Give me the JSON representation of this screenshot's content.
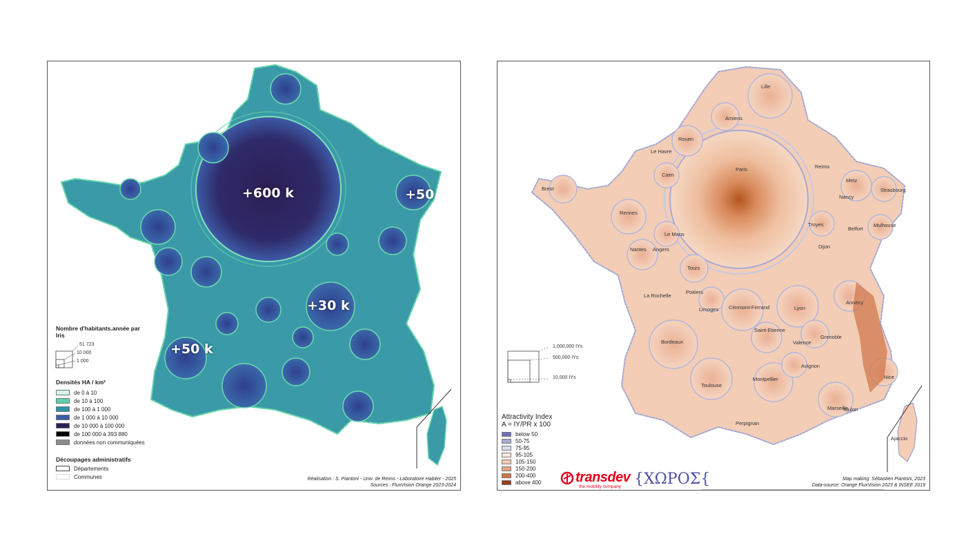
{
  "left_map": {
    "overlay_labels": [
      "+600 k",
      "+50",
      "+30 k",
      "+50 k"
    ],
    "legend_size": {
      "title": "Nombre d'habitants.année par Iris",
      "values": [
        "51 723",
        "10 000",
        "1 000"
      ]
    },
    "legend_density": {
      "title": "Densités HA / km²",
      "items": [
        {
          "label": "de 0 à 10",
          "color": "#d7f4e3"
        },
        {
          "label": "de 10 à 100",
          "color": "#5fd0a7"
        },
        {
          "label": "de 100 à 1 000",
          "color": "#2e93a5"
        },
        {
          "label": "de 1 000 à 10 000",
          "color": "#3a5ba6"
        },
        {
          "label": "de 10 000 à 100 000",
          "color": "#2c1f55"
        },
        {
          "label": "de 100 000 à 393 880",
          "color": "#000000"
        },
        {
          "label": "données non communiquées",
          "color": "#8c8c8c"
        }
      ]
    },
    "legend_admin": {
      "title": "Découpages administratifs",
      "items": [
        "Départements",
        "Communes"
      ]
    },
    "credit": {
      "line1": "Réalisation : S. Piantoni - Univ. de Reims - Laboratoire Habiter - 2025",
      "line2": "Sources : FluxVision Orange 2023-2024"
    }
  },
  "right_map": {
    "cities": [
      "Lille",
      "Amiens",
      "Rouen",
      "Le Havre",
      "Caen",
      "Brest",
      "Rennes",
      "Le Mans",
      "Angers",
      "Nantes",
      "Tours",
      "Paris",
      "Reims",
      "Metz",
      "Strasbourg",
      "Nancy",
      "Troyes",
      "Belfort",
      "Mulhouse",
      "Dijon",
      "Poitiers",
      "La Rochelle",
      "Limoges",
      "Clermont-Ferrand",
      "Lyon",
      "Annecy",
      "Saint-Etienne",
      "Grenoble",
      "Valence",
      "Bordeaux",
      "Avignon",
      "Nice",
      "Montpellier",
      "Toulouse",
      "Marseille",
      "Toulon",
      "Perpignan",
      "Ajaccio"
    ],
    "size_legend": [
      "1,000,000 IYs",
      "500,000 IYs",
      "10,000 IYs"
    ],
    "legend": {
      "title": "Attractivity Index",
      "subtitle": "A = IY/PR x 100",
      "items": [
        {
          "label": "below 50",
          "color": "#6c6fb6"
        },
        {
          "label": "50-75",
          "color": "#a9aad6"
        },
        {
          "label": "75-95",
          "color": "#dcdced"
        },
        {
          "label": "95-105",
          "color": "#fbe7da"
        },
        {
          "label": "105-150",
          "color": "#f3c9b0"
        },
        {
          "label": "150-200",
          "color": "#e8a17f"
        },
        {
          "label": "200-400",
          "color": "#cf7446"
        },
        {
          "label": "above 400",
          "color": "#9b3d17"
        }
      ]
    },
    "logos": {
      "transdev": "transdev",
      "transdev_tagline": "the mobility company",
      "choros": "{ΧΩΡΟΣ{"
    },
    "credit": {
      "line1": "Map making: Sébastien Piantoni, 2023",
      "line2": "Data-source: Orange FluxVision 2023 & INSEE 2019"
    }
  }
}
